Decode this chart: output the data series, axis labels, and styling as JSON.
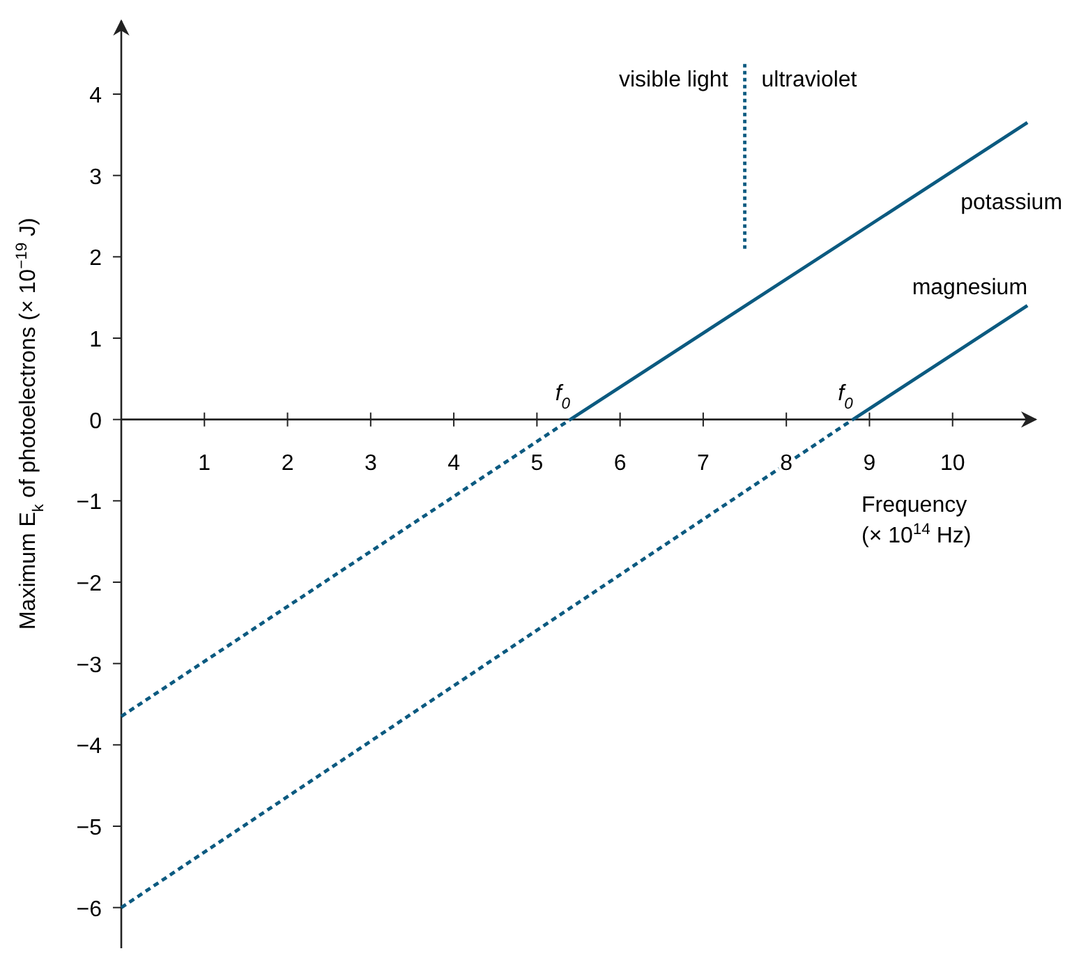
{
  "chart_data": {
    "type": "line",
    "xlabel": "Frequency\n(× 10$^{14}$ Hz)",
    "ylabel": "Maximum E$_{k}$ of photoelectrons (× 10$^{−19}$ J)",
    "xlim": [
      0,
      11
    ],
    "ylim": [
      -6.5,
      4.9
    ],
    "xticks": [
      1,
      2,
      3,
      4,
      5,
      6,
      7,
      8,
      9,
      10
    ],
    "yticks": [
      -6,
      -5,
      -4,
      -3,
      -2,
      -1,
      0,
      1,
      2,
      3,
      4
    ],
    "grid": false,
    "series": [
      {
        "name": "potassium",
        "color": "#0b5a80",
        "x": [
          5.4,
          10.9
        ],
        "values": [
          0,
          3.65
        ],
        "line_style": "solid"
      },
      {
        "name": "magnesium",
        "color": "#0b5a80",
        "x": [
          8.8,
          10.9
        ],
        "values": [
          0,
          1.4
        ],
        "line_style": "solid"
      },
      {
        "color": "#0b5a80",
        "x": [
          0,
          5.4
        ],
        "values": [
          -3.65,
          0
        ],
        "line_style": "dashed"
      },
      {
        "color": "#0b5a80",
        "x": [
          0,
          8.8
        ],
        "values": [
          -6,
          0
        ],
        "line_style": "dashed"
      },
      {
        "color": "#0b5a80",
        "x": [
          7.5,
          7.5
        ],
        "values": [
          2.1,
          4.4
        ],
        "line_style": "dotted"
      }
    ],
    "annotations": [
      {
        "text": "f$_{0}$",
        "x": 5.4,
        "y": 0
      },
      {
        "text": "f$_{0}$",
        "x": 8.8,
        "y": 0
      },
      {
        "text": "visible light",
        "x": 7.5,
        "y": 4.2
      },
      {
        "text": "ultraviolet",
        "x": 7.5,
        "y": 4.2
      }
    ]
  }
}
